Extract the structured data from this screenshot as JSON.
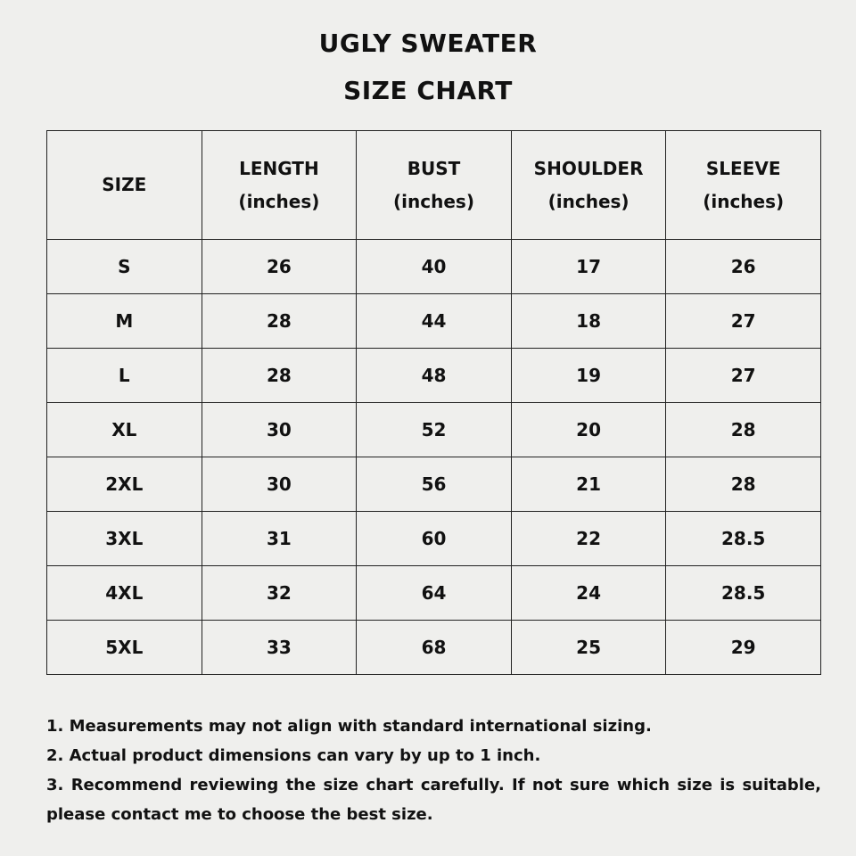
{
  "title": {
    "line1": "UGLY SWEATER",
    "line2": "SIZE CHART"
  },
  "table": {
    "headers": [
      {
        "label": "SIZE",
        "unit": ""
      },
      {
        "label": "LENGTH",
        "unit": "(inches)"
      },
      {
        "label": "BUST",
        "unit": "(inches)"
      },
      {
        "label": "SHOULDER",
        "unit": "(inches)"
      },
      {
        "label": "SLEEVE",
        "unit": "(inches)"
      }
    ],
    "rows": [
      [
        "S",
        "26",
        "40",
        "17",
        "26"
      ],
      [
        "M",
        "28",
        "44",
        "18",
        "27"
      ],
      [
        "L",
        "28",
        "48",
        "19",
        "27"
      ],
      [
        "XL",
        "30",
        "52",
        "20",
        "28"
      ],
      [
        "2XL",
        "30",
        "56",
        "21",
        "28"
      ],
      [
        "3XL",
        "31",
        "60",
        "22",
        "28.5"
      ],
      [
        "4XL",
        "32",
        "64",
        "24",
        "28.5"
      ],
      [
        "5XL",
        "33",
        "68",
        "25",
        "29"
      ]
    ]
  },
  "notes": [
    "1. Measurements may not align with standard international sizing.",
    "2. Actual product dimensions can vary by up to 1 inch.",
    "3. Recommend reviewing the size chart carefully. If not sure which size is suitable, please contact me to choose the best size."
  ]
}
